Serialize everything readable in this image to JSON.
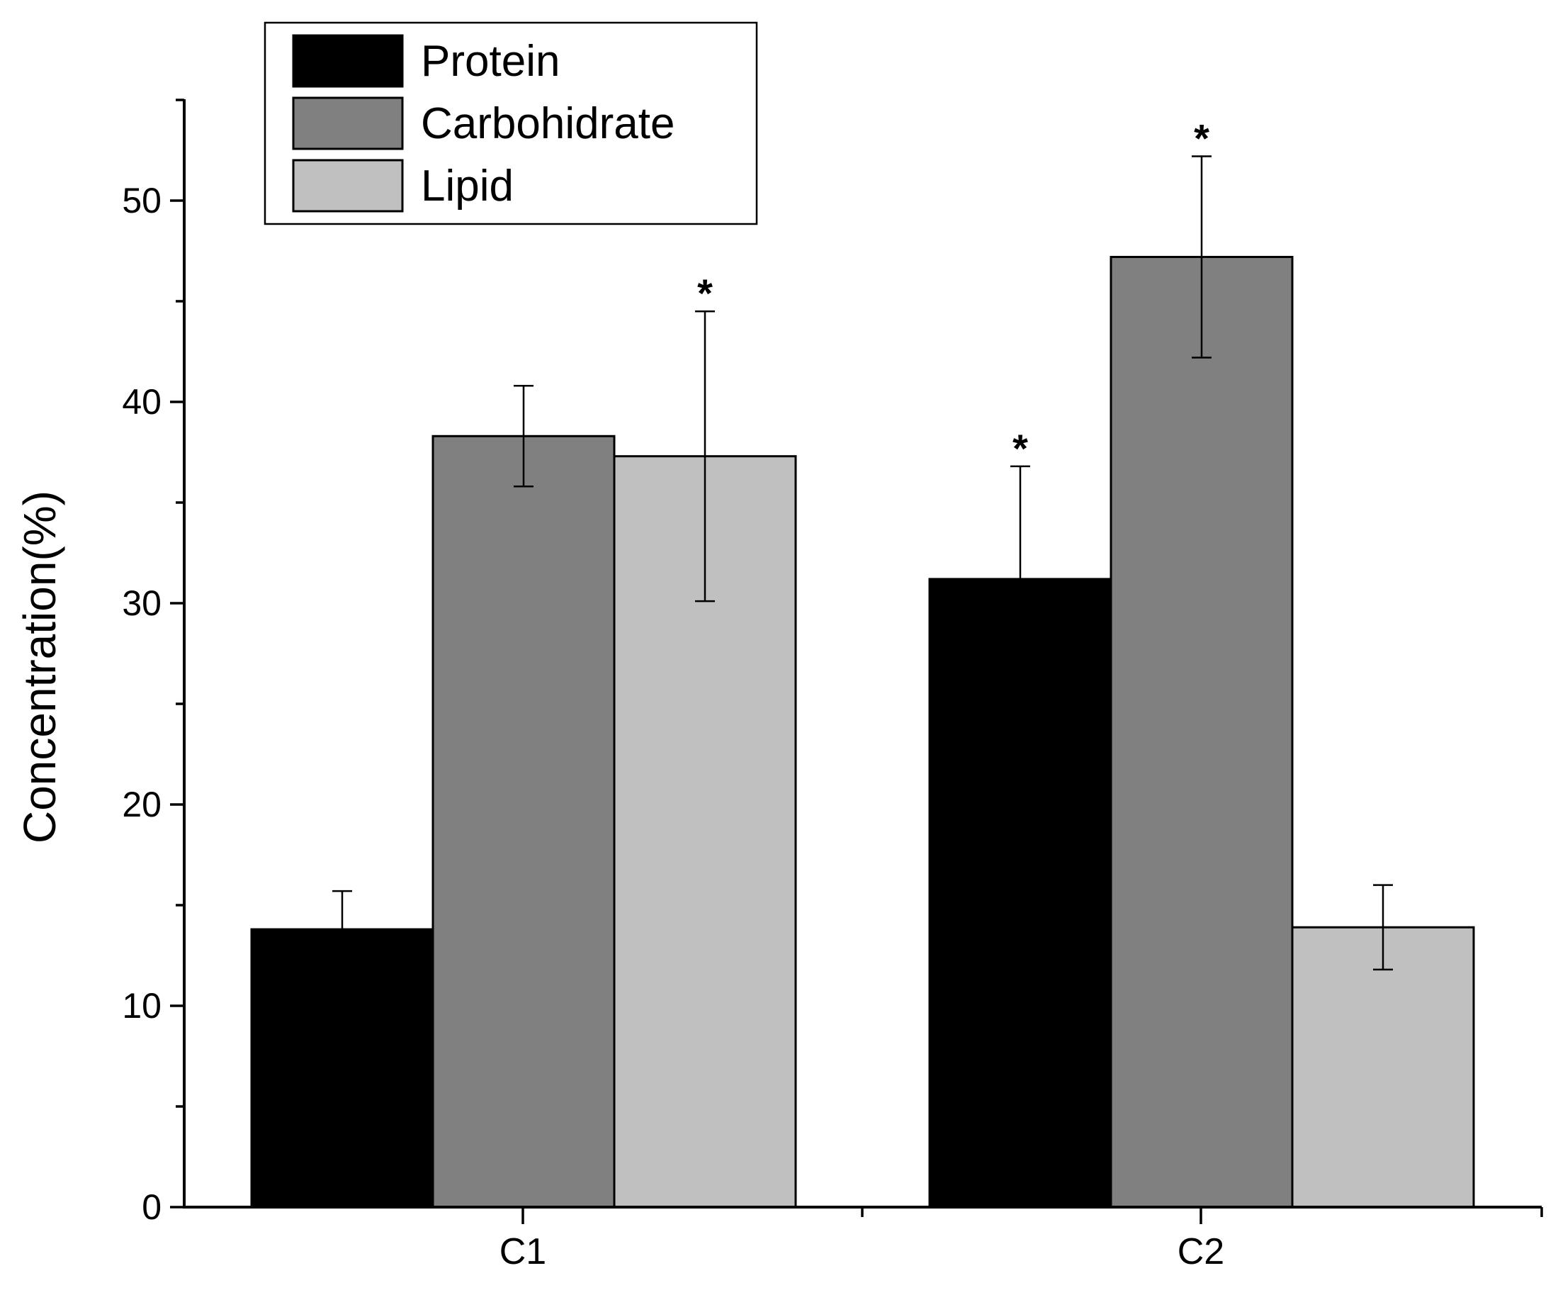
{
  "chart_data": {
    "type": "bar",
    "title": "",
    "xlabel": "",
    "ylabel": "Concentration(%)",
    "ylim": [
      0,
      55
    ],
    "yticks": [
      0,
      10,
      20,
      30,
      40,
      50
    ],
    "grid": false,
    "legend_position": "top-left",
    "categories": [
      "C1",
      "C2"
    ],
    "series": [
      {
        "name": "Protein",
        "color": "#000000",
        "values": [
          13.8,
          31.2
        ],
        "errors": [
          1.9,
          5.6
        ],
        "significant": [
          false,
          true
        ]
      },
      {
        "name": "Carbohidrate",
        "color": "#808080",
        "values": [
          38.3,
          47.2
        ],
        "errors": [
          2.5,
          5.0
        ],
        "significant": [
          false,
          true
        ]
      },
      {
        "name": "Lipid",
        "color": "#c0c0c0",
        "values": [
          37.3,
          13.9
        ],
        "errors": [
          7.2,
          2.1
        ],
        "significant": [
          true,
          false
        ]
      }
    ],
    "significance_marker": "*"
  }
}
